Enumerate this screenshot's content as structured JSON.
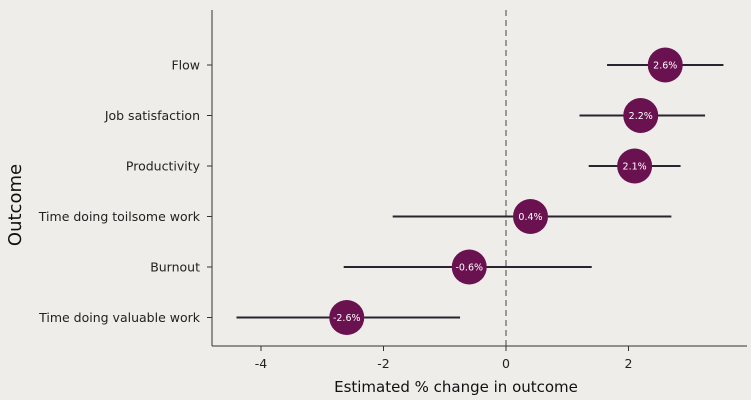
{
  "chart_data": {
    "type": "scatter",
    "xlabel": "Estimated % change in outcome",
    "ylabel": "Outcome",
    "xlim": [
      -4.8,
      4.0
    ],
    "xticks": [
      -4,
      -2,
      0,
      2
    ],
    "xtick_labels": [
      "-4",
      "-2",
      "0",
      "2"
    ],
    "reference_line_x": 0,
    "grid": false,
    "categories": [
      "Flow",
      "Job satisfaction",
      "Productivity",
      "Time doing toilsome work",
      "Burnout",
      "Time doing valuable work"
    ],
    "values": [
      2.6,
      2.2,
      2.1,
      0.4,
      -0.6,
      -2.6
    ],
    "ci_low": [
      1.65,
      1.2,
      1.35,
      -1.85,
      -2.65,
      -4.4
    ],
    "ci_high": [
      3.55,
      3.25,
      2.85,
      2.7,
      1.4,
      -0.75
    ],
    "point_labels": [
      "2.6%",
      "2.2%",
      "2.1%",
      "0.4%",
      "-0.6%",
      "-2.6%"
    ],
    "colors": {
      "point": "#6a1250",
      "ci": "#2b2430",
      "axis": "#333333",
      "background": "#efedea"
    }
  }
}
